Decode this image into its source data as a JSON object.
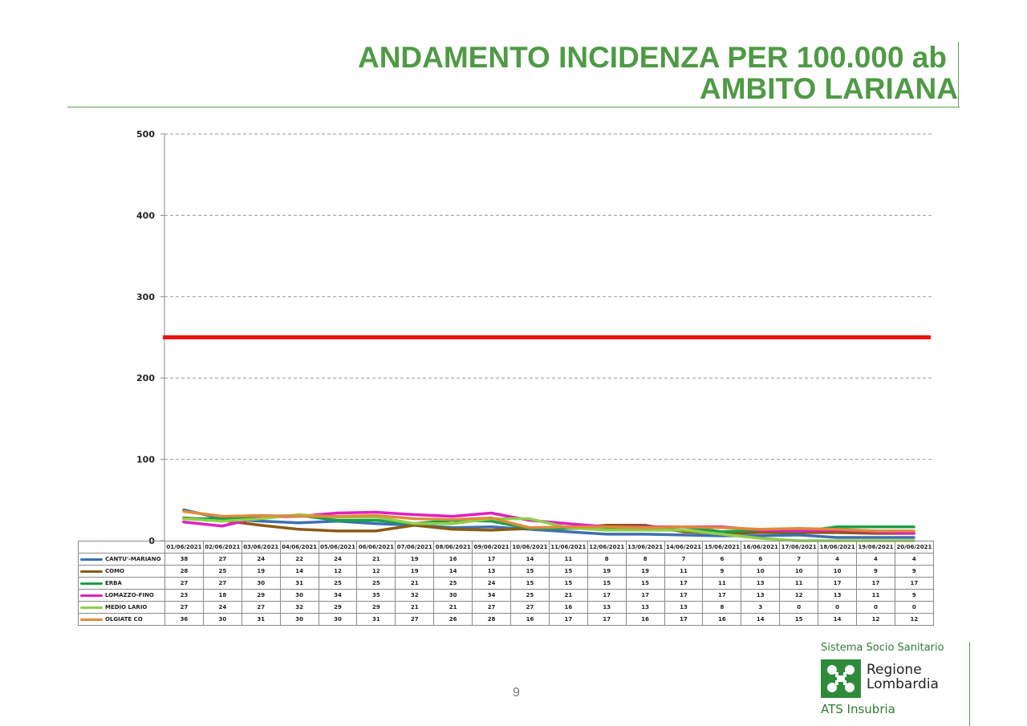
{
  "title": {
    "line1": "ANDAMENTO INCIDENZA PER 100.000 ab",
    "line2": "AMBITO LARIANA"
  },
  "chart_data": {
    "type": "line",
    "ylim": [
      0,
      500
    ],
    "yticks": [
      "0",
      "100",
      "200",
      "300",
      "400",
      "500"
    ],
    "grid": true,
    "threshold": {
      "value": 250,
      "color": "#ee1111"
    },
    "categories": [
      "01/06/2021",
      "02/06/2021",
      "03/06/2021",
      "04/06/2021",
      "05/06/2021",
      "06/06/2021",
      "07/06/2021",
      "08/06/2021",
      "09/06/2021",
      "10/06/2021",
      "11/06/2021",
      "12/06/2021",
      "13/06/2021",
      "14/06/2021",
      "15/06/2021",
      "16/06/2021",
      "17/06/2021",
      "18/06/2021",
      "19/06/2021",
      "20/06/2021"
    ],
    "series": [
      {
        "name": "CANTU'-MARIANO",
        "color": "#3f6fb0",
        "values": [
          38,
          27,
          24,
          22,
          24,
          21,
          19,
          16,
          17,
          14,
          11,
          8,
          8,
          7,
          6,
          6,
          7,
          4,
          4,
          4
        ]
      },
      {
        "name": "COMO",
        "color": "#8a5a14",
        "values": [
          28,
          25,
          19,
          14,
          12,
          12,
          19,
          14,
          13,
          15,
          15,
          19,
          19,
          11,
          9,
          10,
          10,
          10,
          9,
          9
        ]
      },
      {
        "name": "ERBA",
        "color": "#1aa04a",
        "values": [
          27,
          27,
          30,
          31,
          25,
          25,
          21,
          25,
          24,
          15,
          15,
          15,
          15,
          17,
          11,
          13,
          11,
          17,
          17,
          17
        ]
      },
      {
        "name": "LOMAZZO-FINO",
        "color": "#e020c0",
        "values": [
          23,
          18,
          29,
          30,
          34,
          35,
          32,
          30,
          34,
          25,
          21,
          17,
          17,
          17,
          17,
          13,
          12,
          13,
          11,
          9
        ]
      },
      {
        "name": "MEDIO LARIO",
        "color": "#8ed04a",
        "values": [
          27,
          24,
          27,
          32,
          29,
          29,
          21,
          21,
          27,
          27,
          16,
          13,
          13,
          13,
          8,
          3,
          0,
          0,
          0,
          0
        ]
      },
      {
        "name": "OLGIATE CO",
        "color": "#e08a3a",
        "values": [
          36,
          30,
          31,
          30,
          30,
          31,
          27,
          26,
          28,
          16,
          17,
          17,
          16,
          17,
          16,
          14,
          15,
          14,
          12,
          12
        ]
      }
    ]
  },
  "footer": {
    "page_number": "9",
    "logo_top": "Sistema Socio Sanitario",
    "logo_name_1": "Regione",
    "logo_name_2": "Lombardia",
    "logo_sub": "ATS Insubria"
  }
}
